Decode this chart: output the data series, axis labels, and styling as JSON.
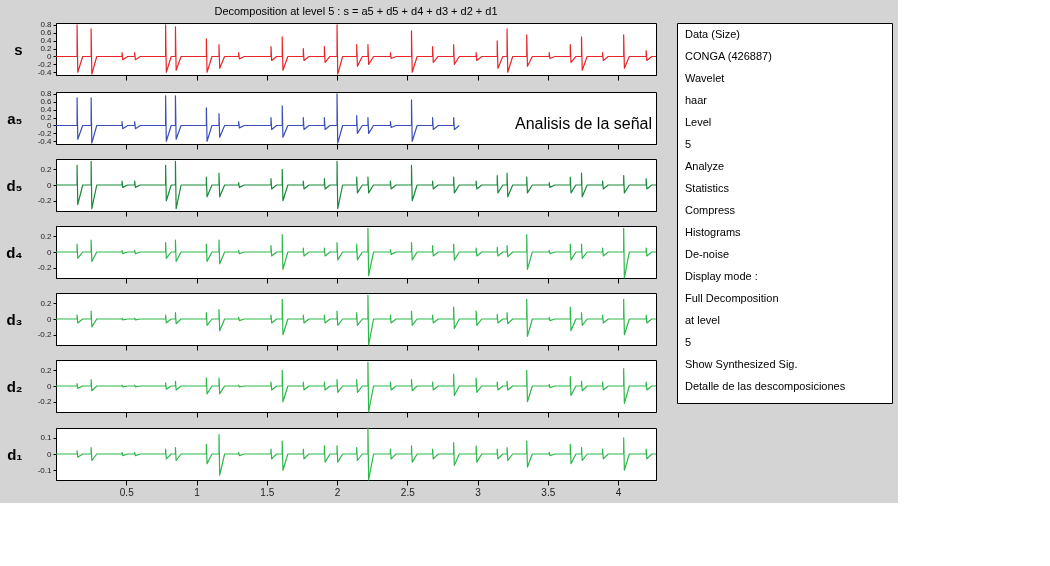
{
  "chart_data": [
    {
      "type": "line",
      "title": "Decomposition at level 5 : s = a5 + d5 + d4 + d3 + d2 + d1",
      "ylabel": "s",
      "tick_labels": "y",
      "grid": false,
      "xlim": [
        0,
        4.27
      ],
      "xticks": [
        0.5,
        1,
        1.5,
        2,
        2.5,
        3,
        3.5,
        4
      ],
      "ylim": [
        -0.47,
        0.85
      ],
      "yticks": [
        -0.4,
        -0.2,
        0,
        0.2,
        0.4,
        0.6,
        0.8
      ],
      "x": [
        0,
        0.15,
        0.15,
        0.155,
        0.19,
        0.25,
        0.25,
        0.255,
        0.29,
        0.47,
        0.47,
        0.475,
        0.51,
        0.56,
        0.56,
        0.565,
        0.6,
        0.78,
        0.78,
        0.785,
        0.82,
        0.85,
        0.85,
        0.855,
        0.89,
        1.07,
        1.07,
        1.075,
        1.11,
        1.16,
        1.16,
        1.165,
        1.2,
        1.3,
        1.3,
        1.305,
        1.34,
        1.53,
        1.53,
        1.535,
        1.57,
        1.61,
        1.61,
        1.615,
        1.65,
        1.76,
        1.76,
        1.765,
        1.8,
        1.91,
        1.91,
        1.915,
        1.95,
        2,
        2,
        2.005,
        2.04,
        2.14,
        2.14,
        2.145,
        2.18,
        2.22,
        2.22,
        2.225,
        2.26,
        2.38,
        2.38,
        2.385,
        2.42,
        2.53,
        2.53,
        2.535,
        2.57,
        2.68,
        2.68,
        2.685,
        2.72,
        2.83,
        2.83,
        2.835,
        2.87,
        2.99,
        2.99,
        2.995,
        3.03,
        3.14,
        3.14,
        3.145,
        3.18,
        3.21,
        3.21,
        3.215,
        3.25,
        3.35,
        3.35,
        3.355,
        3.39,
        3.51,
        3.51,
        3.515,
        3.55,
        3.66,
        3.66,
        3.665,
        3.7,
        3.74,
        3.74,
        3.745,
        3.78,
        3.89,
        3.89,
        3.895,
        3.93,
        4.04,
        4.04,
        4.045,
        4.08,
        4.2,
        4.2,
        4.205,
        4.24,
        4.27
      ],
      "series": [
        {
          "color": "#e8262a",
          "values": [
            0,
            0,
            0.8,
            -0.4,
            0,
            0,
            0.7,
            -0.45,
            0,
            0,
            0.1,
            -0.08,
            0,
            0,
            0.1,
            -0.08,
            0,
            0,
            0.8,
            -0.4,
            0,
            0,
            0.75,
            -0.35,
            0,
            0,
            0.45,
            -0.4,
            0,
            0,
            0.3,
            -0.3,
            0,
            0,
            0.1,
            -0.06,
            0,
            0,
            0.25,
            -0.1,
            0,
            0,
            0.5,
            -0.35,
            0,
            0,
            0.2,
            -0.1,
            0,
            0,
            0.25,
            -0.15,
            0,
            0,
            0.8,
            -0.45,
            0,
            0,
            0.3,
            -0.25,
            0,
            0,
            0.3,
            -0.2,
            0,
            0,
            0.1,
            -0.05,
            0,
            0,
            0.65,
            -0.4,
            0,
            0,
            0.25,
            -0.15,
            0,
            0,
            0.3,
            -0.2,
            0,
            0,
            0.1,
            -0.1,
            0,
            0,
            0.4,
            -0.3,
            0,
            0,
            0.7,
            -0.4,
            0,
            0,
            0.55,
            -0.25,
            0,
            0,
            0.1,
            -0.05,
            0,
            0,
            0.3,
            -0.15,
            0,
            0,
            0.5,
            -0.35,
            0,
            0,
            0.1,
            -0.1,
            0,
            0,
            0.55,
            -0.3,
            0,
            0,
            0.15,
            -0.1,
            0,
            0
          ]
        }
      ]
    },
    {
      "type": "line",
      "ylabel": "a₅",
      "tick_labels": "y",
      "grid": false,
      "xlim": [
        0,
        4.27
      ],
      "xticks": [
        0.5,
        1,
        1.5,
        2,
        2.5,
        3,
        3.5,
        4
      ],
      "ylim": [
        -0.47,
        0.85
      ],
      "yticks": [
        -0.4,
        -0.2,
        0,
        0.2,
        0.4,
        0.6,
        0.8
      ],
      "annotations": [
        "Analisis de la señal"
      ],
      "x": [
        0,
        0.15,
        0.15,
        0.155,
        0.19,
        0.25,
        0.25,
        0.255,
        0.29,
        0.47,
        0.47,
        0.475,
        0.51,
        0.56,
        0.56,
        0.565,
        0.6,
        0.78,
        0.78,
        0.785,
        0.82,
        0.85,
        0.85,
        0.855,
        0.89,
        1.07,
        1.07,
        1.075,
        1.11,
        1.16,
        1.16,
        1.165,
        1.2,
        1.3,
        1.3,
        1.305,
        1.34,
        1.53,
        1.53,
        1.535,
        1.57,
        1.61,
        1.61,
        1.615,
        1.65,
        1.76,
        1.76,
        1.765,
        1.8,
        1.91,
        1.91,
        1.915,
        1.95,
        2,
        2,
        2.005,
        2.04,
        2.14,
        2.14,
        2.145,
        2.18,
        2.22,
        2.22,
        2.225,
        2.26,
        2.38,
        2.38,
        2.385,
        2.42,
        2.53,
        2.53,
        2.535,
        2.57,
        2.68,
        2.68,
        2.685,
        2.72,
        2.83,
        2.83,
        2.835,
        2.87
      ],
      "series": [
        {
          "color": "#3a4fb8",
          "values": [
            0,
            0,
            0.7,
            -0.35,
            0,
            0,
            0.7,
            -0.45,
            0,
            0,
            0.1,
            -0.08,
            0,
            0,
            0.1,
            -0.08,
            0,
            0,
            0.75,
            -0.4,
            0,
            0,
            0.75,
            -0.35,
            0,
            0,
            0.45,
            -0.4,
            0,
            0,
            0.3,
            -0.3,
            0,
            0,
            0.1,
            -0.06,
            0,
            0,
            0.2,
            -0.1,
            0,
            0,
            0.5,
            -0.3,
            0,
            0,
            0.2,
            -0.1,
            0,
            0,
            0.2,
            -0.1,
            0,
            0,
            0.8,
            -0.45,
            0,
            0,
            0.25,
            -0.2,
            0,
            0,
            0.2,
            -0.2,
            0,
            0,
            0.1,
            -0.05,
            0,
            0,
            0.65,
            -0.4,
            0,
            0,
            0.2,
            -0.1,
            0,
            0,
            0.2,
            -0.1,
            0
          ]
        }
      ]
    },
    {
      "type": "line",
      "ylabel": "d₅",
      "tick_labels": "y",
      "grid": false,
      "xlim": [
        0,
        4.27
      ],
      "xticks": [
        0.5,
        1,
        1.5,
        2,
        2.5,
        3,
        3.5,
        4
      ],
      "ylim": [
        -0.33,
        0.33
      ],
      "yticks": [
        -0.2,
        0,
        0.2
      ],
      "x": [
        0,
        0.15,
        0.15,
        0.155,
        0.19,
        0.25,
        0.25,
        0.255,
        0.29,
        0.47,
        0.47,
        0.475,
        0.51,
        0.56,
        0.56,
        0.565,
        0.6,
        0.78,
        0.78,
        0.785,
        0.82,
        0.85,
        0.85,
        0.855,
        0.89,
        1.07,
        1.07,
        1.075,
        1.11,
        1.16,
        1.16,
        1.165,
        1.2,
        1.3,
        1.3,
        1.305,
        1.34,
        1.53,
        1.53,
        1.535,
        1.57,
        1.61,
        1.61,
        1.615,
        1.65,
        1.76,
        1.76,
        1.765,
        1.8,
        1.91,
        1.91,
        1.915,
        1.95,
        2,
        2,
        2.005,
        2.04,
        2.14,
        2.14,
        2.145,
        2.18,
        2.22,
        2.22,
        2.225,
        2.26,
        2.38,
        2.38,
        2.385,
        2.42,
        2.53,
        2.53,
        2.535,
        2.57,
        2.68,
        2.68,
        2.685,
        2.72,
        2.83,
        2.83,
        2.835,
        2.87,
        2.99,
        2.99,
        2.995,
        3.03,
        3.14,
        3.14,
        3.145,
        3.18,
        3.21,
        3.21,
        3.215,
        3.25,
        3.35,
        3.35,
        3.355,
        3.39,
        3.51,
        3.51,
        3.515,
        3.55,
        3.66,
        3.66,
        3.665,
        3.7,
        3.74,
        3.74,
        3.745,
        3.78,
        3.89,
        3.89,
        3.895,
        3.93,
        4.04,
        4.04,
        4.045,
        4.08,
        4.2,
        4.2,
        4.205,
        4.24,
        4.27
      ],
      "series": [
        {
          "color": "#1a8a3a",
          "values": [
            0,
            0,
            0.25,
            -0.25,
            0,
            0,
            0.3,
            -0.3,
            0,
            0,
            0.05,
            -0.03,
            0,
            0,
            0.05,
            -0.03,
            0,
            0,
            0.25,
            -0.2,
            0,
            0,
            0.3,
            -0.3,
            0,
            0,
            0.1,
            -0.15,
            0,
            0,
            0.15,
            -0.15,
            0,
            0,
            0.03,
            -0.03,
            0,
            0,
            0.08,
            -0.05,
            0,
            0,
            0.2,
            -0.2,
            0,
            0,
            0.05,
            -0.05,
            0,
            0,
            0.08,
            -0.05,
            0,
            0,
            0.3,
            -0.3,
            0,
            0,
            0.1,
            -0.1,
            0,
            0,
            0.1,
            -0.1,
            0,
            0,
            0.05,
            -0.05,
            0,
            0,
            0.25,
            -0.2,
            0,
            0,
            0.05,
            -0.05,
            0,
            0,
            0.1,
            -0.1,
            0,
            0,
            0.05,
            -0.05,
            0,
            0,
            0.12,
            -0.1,
            0,
            0,
            0.15,
            -0.15,
            0,
            0,
            0.1,
            -0.1,
            0,
            0,
            0.03,
            -0.03,
            0,
            0,
            0.1,
            -0.1,
            0,
            0,
            0.15,
            -0.15,
            0,
            0,
            0.05,
            -0.05,
            0,
            0,
            0.12,
            -0.1,
            0,
            0,
            0.08,
            -0.05,
            0,
            0
          ]
        }
      ]
    },
    {
      "type": "line",
      "ylabel": "d₄",
      "tick_labels": "y",
      "grid": false,
      "xlim": [
        0,
        4.27
      ],
      "xticks": [
        0.5,
        1,
        1.5,
        2,
        2.5,
        3,
        3.5,
        4
      ],
      "ylim": [
        -0.33,
        0.33
      ],
      "yticks": [
        -0.2,
        0,
        0.2
      ],
      "x": [
        0,
        0.15,
        0.15,
        0.155,
        0.19,
        0.25,
        0.25,
        0.255,
        0.29,
        0.47,
        0.47,
        0.475,
        0.51,
        0.56,
        0.56,
        0.565,
        0.6,
        0.78,
        0.78,
        0.785,
        0.82,
        0.85,
        0.85,
        0.855,
        0.89,
        1.07,
        1.07,
        1.075,
        1.11,
        1.16,
        1.16,
        1.165,
        1.2,
        1.3,
        1.3,
        1.305,
        1.34,
        1.53,
        1.53,
        1.535,
        1.57,
        1.61,
        1.61,
        1.615,
        1.65,
        1.76,
        1.76,
        1.765,
        1.8,
        1.91,
        1.91,
        1.915,
        1.95,
        2,
        2,
        2.005,
        2.04,
        2.14,
        2.14,
        2.145,
        2.18,
        2.22,
        2.22,
        2.225,
        2.26,
        2.38,
        2.38,
        2.385,
        2.42,
        2.53,
        2.53,
        2.535,
        2.57,
        2.68,
        2.68,
        2.685,
        2.72,
        2.83,
        2.83,
        2.835,
        2.87,
        2.99,
        2.99,
        2.995,
        3.03,
        3.14,
        3.14,
        3.145,
        3.18,
        3.21,
        3.21,
        3.215,
        3.25,
        3.35,
        3.35,
        3.355,
        3.39,
        3.51,
        3.51,
        3.515,
        3.55,
        3.66,
        3.66,
        3.665,
        3.7,
        3.74,
        3.74,
        3.745,
        3.78,
        3.89,
        3.89,
        3.895,
        3.93,
        4.04,
        4.04,
        4.045,
        4.08,
        4.2,
        4.2,
        4.205,
        4.24,
        4.27
      ],
      "series": [
        {
          "color": "#2db84a",
          "values": [
            0,
            0,
            0.1,
            -0.08,
            0,
            0,
            0.15,
            -0.12,
            0,
            0,
            0.02,
            -0.02,
            0,
            0,
            0.02,
            -0.02,
            0,
            0,
            0.12,
            -0.08,
            0,
            0,
            0.15,
            -0.12,
            0,
            0,
            0.1,
            -0.12,
            0,
            0,
            0.15,
            -0.15,
            0,
            0,
            0.02,
            -0.02,
            0,
            0,
            0.08,
            -0.05,
            0,
            0,
            0.22,
            -0.22,
            0,
            0,
            0.05,
            -0.05,
            0,
            0,
            0.05,
            -0.05,
            0,
            0,
            0.12,
            -0.1,
            0,
            0,
            0.1,
            -0.1,
            0,
            0,
            0.3,
            -0.3,
            0,
            0,
            0.03,
            -0.03,
            0,
            0,
            0.12,
            -0.1,
            0,
            0,
            0.08,
            -0.05,
            0,
            0,
            0.1,
            -0.1,
            0,
            0,
            0.05,
            -0.05,
            0,
            0,
            0.06,
            -0.05,
            0,
            0,
            0.08,
            -0.06,
            0,
            0,
            0.22,
            -0.22,
            0,
            0,
            0.02,
            -0.02,
            0,
            0,
            0.1,
            -0.1,
            0,
            0,
            0.1,
            -0.08,
            0,
            0,
            0.05,
            -0.05,
            0,
            0,
            0.3,
            -0.33,
            0,
            0,
            0.05,
            -0.05,
            0,
            0
          ]
        }
      ]
    },
    {
      "type": "line",
      "ylabel": "d₃",
      "tick_labels": "y",
      "grid": false,
      "xlim": [
        0,
        4.27
      ],
      "xticks": [
        0.5,
        1,
        1.5,
        2,
        2.5,
        3,
        3.5,
        4
      ],
      "ylim": [
        -0.33,
        0.33
      ],
      "yticks": [
        -0.2,
        0,
        0.2
      ],
      "x": [
        0,
        0.15,
        0.15,
        0.155,
        0.19,
        0.25,
        0.25,
        0.255,
        0.29,
        0.47,
        0.47,
        0.475,
        0.51,
        0.56,
        0.56,
        0.565,
        0.6,
        0.78,
        0.78,
        0.785,
        0.82,
        0.85,
        0.85,
        0.855,
        0.89,
        1.07,
        1.07,
        1.075,
        1.11,
        1.16,
        1.16,
        1.165,
        1.2,
        1.3,
        1.3,
        1.305,
        1.34,
        1.53,
        1.53,
        1.535,
        1.57,
        1.61,
        1.61,
        1.615,
        1.65,
        1.76,
        1.76,
        1.765,
        1.8,
        1.91,
        1.91,
        1.915,
        1.95,
        2,
        2,
        2.005,
        2.04,
        2.14,
        2.14,
        2.145,
        2.18,
        2.22,
        2.22,
        2.225,
        2.26,
        2.38,
        2.38,
        2.385,
        2.42,
        2.53,
        2.53,
        2.535,
        2.57,
        2.68,
        2.68,
        2.685,
        2.72,
        2.83,
        2.83,
        2.835,
        2.87,
        2.99,
        2.99,
        2.995,
        3.03,
        3.14,
        3.14,
        3.145,
        3.18,
        3.21,
        3.21,
        3.215,
        3.25,
        3.35,
        3.35,
        3.355,
        3.39,
        3.51,
        3.51,
        3.515,
        3.55,
        3.66,
        3.66,
        3.665,
        3.7,
        3.74,
        3.74,
        3.745,
        3.78,
        3.89,
        3.89,
        3.895,
        3.93,
        4.04,
        4.04,
        4.045,
        4.08,
        4.2,
        4.2,
        4.205,
        4.24,
        4.27
      ],
      "series": [
        {
          "color": "#2db84a",
          "values": [
            0,
            0,
            0.05,
            -0.05,
            0,
            0,
            0.1,
            -0.1,
            0,
            0,
            0.01,
            -0.01,
            0,
            0,
            0.01,
            -0.01,
            0,
            0,
            0.05,
            -0.05,
            0,
            0,
            0.08,
            -0.06,
            0,
            0,
            0.08,
            -0.08,
            0,
            0,
            0.12,
            -0.15,
            0,
            0,
            0.02,
            -0.02,
            0,
            0,
            0.05,
            -0.05,
            0,
            0,
            0.25,
            -0.2,
            0,
            0,
            0.05,
            -0.05,
            0,
            0,
            0.05,
            -0.05,
            0,
            0,
            0.1,
            -0.08,
            0,
            0,
            0.08,
            -0.08,
            0,
            0,
            0.3,
            -0.33,
            0,
            0,
            0.05,
            -0.05,
            0,
            0,
            0.1,
            -0.08,
            0,
            0,
            0.05,
            -0.05,
            0,
            0,
            0.15,
            -0.12,
            0,
            0,
            0.1,
            -0.08,
            0,
            0,
            0.06,
            -0.05,
            0,
            0,
            0.08,
            -0.06,
            0,
            0,
            0.25,
            -0.22,
            0,
            0,
            0.02,
            -0.02,
            0,
            0,
            0.15,
            -0.15,
            0,
            0,
            0.08,
            -0.08,
            0,
            0,
            0.05,
            -0.05,
            0,
            0,
            0.25,
            -0.2,
            0,
            0,
            0.05,
            -0.05,
            0,
            0
          ]
        }
      ]
    },
    {
      "type": "line",
      "ylabel": "d₂",
      "tick_labels": "y",
      "grid": false,
      "xlim": [
        0,
        4.27
      ],
      "xticks": [
        0.5,
        1,
        1.5,
        2,
        2.5,
        3,
        3.5,
        4
      ],
      "ylim": [
        -0.33,
        0.33
      ],
      "yticks": [
        -0.2,
        0,
        0.2
      ],
      "x": [
        0,
        0.15,
        0.15,
        0.155,
        0.19,
        0.25,
        0.25,
        0.255,
        0.29,
        0.47,
        0.47,
        0.475,
        0.51,
        0.56,
        0.56,
        0.565,
        0.6,
        0.78,
        0.78,
        0.785,
        0.82,
        0.85,
        0.85,
        0.855,
        0.89,
        1.07,
        1.07,
        1.075,
        1.11,
        1.16,
        1.16,
        1.165,
        1.2,
        1.3,
        1.3,
        1.305,
        1.34,
        1.53,
        1.53,
        1.535,
        1.57,
        1.61,
        1.61,
        1.615,
        1.65,
        1.76,
        1.76,
        1.765,
        1.8,
        1.91,
        1.91,
        1.915,
        1.95,
        2,
        2,
        2.005,
        2.04,
        2.14,
        2.14,
        2.145,
        2.18,
        2.22,
        2.22,
        2.225,
        2.26,
        2.38,
        2.38,
        2.385,
        2.42,
        2.53,
        2.53,
        2.535,
        2.57,
        2.68,
        2.68,
        2.685,
        2.72,
        2.83,
        2.83,
        2.835,
        2.87,
        2.99,
        2.99,
        2.995,
        3.03,
        3.14,
        3.14,
        3.145,
        3.18,
        3.21,
        3.21,
        3.215,
        3.25,
        3.35,
        3.35,
        3.355,
        3.39,
        3.51,
        3.51,
        3.515,
        3.55,
        3.66,
        3.66,
        3.665,
        3.7,
        3.74,
        3.74,
        3.745,
        3.78,
        3.89,
        3.89,
        3.895,
        3.93,
        4.04,
        4.04,
        4.045,
        4.08,
        4.2,
        4.2,
        4.205,
        4.24,
        4.27
      ],
      "series": [
        {
          "color": "#2db84a",
          "values": [
            0,
            0,
            0.03,
            -0.03,
            0,
            0,
            0.08,
            -0.06,
            0,
            0,
            0.01,
            -0.01,
            0,
            0,
            0.01,
            -0.01,
            0,
            0,
            0.04,
            -0.04,
            0,
            0,
            0.06,
            -0.05,
            0,
            0,
            0.1,
            -0.1,
            0,
            0,
            0.1,
            -0.1,
            0,
            0,
            0.01,
            -0.01,
            0,
            0,
            0.05,
            -0.05,
            0,
            0,
            0.2,
            -0.2,
            0,
            0,
            0.05,
            -0.05,
            0,
            0,
            0.05,
            -0.05,
            0,
            0,
            0.08,
            -0.08,
            0,
            0,
            0.08,
            -0.08,
            0,
            0,
            0.3,
            -0.33,
            0,
            0,
            0.05,
            -0.05,
            0,
            0,
            0.08,
            -0.06,
            0,
            0,
            0.05,
            -0.05,
            0,
            0,
            0.15,
            -0.12,
            0,
            0,
            0.1,
            -0.08,
            0,
            0,
            0.05,
            -0.05,
            0,
            0,
            0.06,
            -0.05,
            0,
            0,
            0.2,
            -0.2,
            0,
            0,
            0.02,
            -0.02,
            0,
            0,
            0.12,
            -0.12,
            0,
            0,
            0.06,
            -0.06,
            0,
            0,
            0.05,
            -0.05,
            0,
            0,
            0.22,
            -0.22,
            0,
            0,
            0.05,
            -0.05,
            0,
            0
          ]
        }
      ]
    },
    {
      "type": "line",
      "ylabel": "d₁",
      "grid": false,
      "xlim": [
        0,
        4.27
      ],
      "xticks": [
        0.5,
        1,
        1.5,
        2,
        2.5,
        3,
        3.5,
        4
      ],
      "ylim": [
        -0.16,
        0.16
      ],
      "yticks": [
        -0.1,
        0,
        0.1
      ],
      "x": [
        0,
        0.15,
        0.15,
        0.155,
        0.19,
        0.25,
        0.25,
        0.255,
        0.29,
        0.47,
        0.47,
        0.475,
        0.51,
        0.56,
        0.56,
        0.565,
        0.6,
        0.78,
        0.78,
        0.785,
        0.82,
        0.85,
        0.85,
        0.855,
        0.89,
        1.07,
        1.07,
        1.075,
        1.11,
        1.16,
        1.16,
        1.165,
        1.2,
        1.3,
        1.3,
        1.305,
        1.34,
        1.53,
        1.53,
        1.535,
        1.57,
        1.61,
        1.61,
        1.615,
        1.65,
        1.76,
        1.76,
        1.765,
        1.8,
        1.91,
        1.91,
        1.915,
        1.95,
        2,
        2,
        2.005,
        2.04,
        2.14,
        2.14,
        2.145,
        2.18,
        2.22,
        2.22,
        2.225,
        2.26,
        2.38,
        2.38,
        2.385,
        2.42,
        2.53,
        2.53,
        2.535,
        2.57,
        2.68,
        2.68,
        2.685,
        2.72,
        2.83,
        2.83,
        2.835,
        2.87,
        2.99,
        2.99,
        2.995,
        3.03,
        3.14,
        3.14,
        3.145,
        3.18,
        3.21,
        3.21,
        3.215,
        3.25,
        3.35,
        3.35,
        3.355,
        3.39,
        3.51,
        3.51,
        3.515,
        3.55,
        3.66,
        3.66,
        3.665,
        3.7,
        3.74,
        3.74,
        3.745,
        3.78,
        3.89,
        3.89,
        3.895,
        3.93,
        4.04,
        4.04,
        4.045,
        4.08,
        4.2,
        4.2,
        4.205,
        4.24,
        4.27
      ],
      "series": [
        {
          "color": "#2db84a",
          "values": [
            0,
            0,
            0.02,
            -0.02,
            0,
            0,
            0.04,
            -0.04,
            0,
            0,
            0.01,
            -0.01,
            0,
            0,
            0.01,
            -0.01,
            0,
            0,
            0.03,
            -0.03,
            0,
            0,
            0.04,
            -0.04,
            0,
            0,
            0.06,
            -0.06,
            0,
            0,
            0.12,
            -0.13,
            0,
            0,
            0.01,
            -0.01,
            0,
            0,
            0.03,
            -0.03,
            0,
            0,
            0.08,
            -0.1,
            0,
            0,
            0.03,
            -0.03,
            0,
            0,
            0.05,
            -0.05,
            0,
            0,
            0.05,
            -0.05,
            0,
            0,
            0.04,
            -0.04,
            0,
            0,
            0.16,
            -0.16,
            0,
            0,
            0.03,
            -0.03,
            0,
            0,
            0.05,
            -0.05,
            0,
            0,
            0.03,
            -0.03,
            0,
            0,
            0.07,
            -0.07,
            0,
            0,
            0.05,
            -0.05,
            0,
            0,
            0.03,
            -0.03,
            0,
            0,
            0.04,
            -0.04,
            0,
            0,
            0.08,
            -0.08,
            0,
            0,
            0.01,
            -0.01,
            0,
            0,
            0.06,
            -0.06,
            0,
            0,
            0.04,
            -0.04,
            0,
            0,
            0.03,
            -0.03,
            0,
            0,
            0.1,
            -0.1,
            0,
            0,
            0.03,
            -0.03,
            0,
            0
          ]
        }
      ]
    },
    {
      "type": "other",
      "annotations": [
        "Data (Size)",
        "CONGA (426887)",
        "Wavelet",
        "haar",
        "Level",
        "5",
        "Analyze",
        "Statistics",
        "Compress",
        "Histograms",
        "De-noise",
        "Display mode :",
        "Full Decomposition",
        "at level",
        "5",
        "Show Synthesized Sig.",
        "Detalle de las descomposiciones"
      ]
    }
  ]
}
